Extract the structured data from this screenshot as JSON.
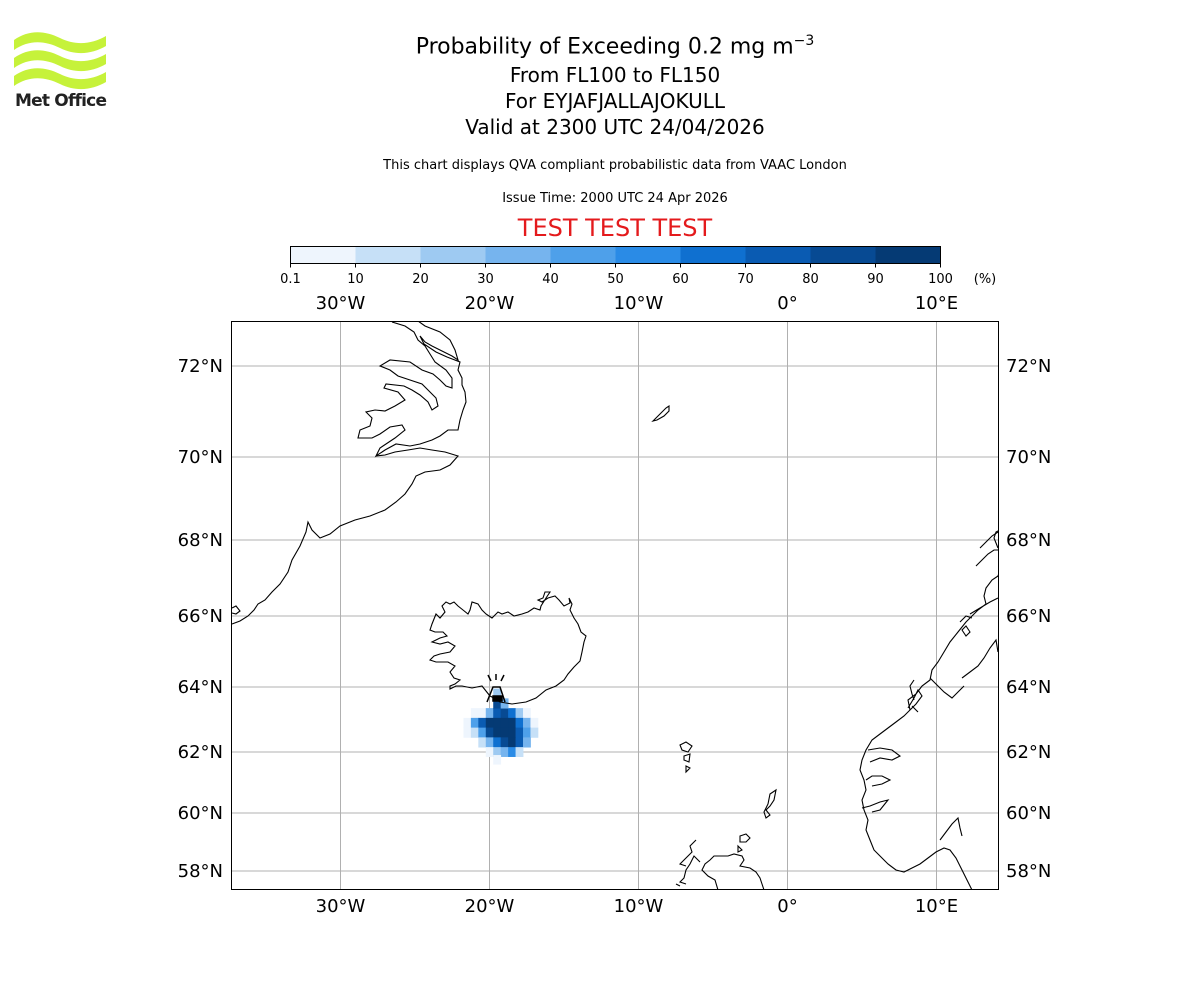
{
  "header": {
    "title_prefix": "Probability of Exceeding 0.2 mg m",
    "title_exponent": "−3",
    "level_range": "From FL100 to FL150",
    "volcano": "For EYJAFJALLAJOKULL",
    "valid_time": "Valid at 2300 UTC 24/04/2026",
    "description": "This chart displays QVA compliant probabilistic data from VAAC London",
    "issue_time": "Issue Time: 2000 UTC 24 Apr 2026",
    "test_banner": "TEST TEST TEST",
    "test_color": "#e41a1c"
  },
  "logo": {
    "text": "Met Office",
    "accent_color": "#c6f23a"
  },
  "colorbar": {
    "unit": "(%)",
    "ticks": [
      "0.1",
      "10",
      "20",
      "30",
      "40",
      "50",
      "60",
      "70",
      "80",
      "90",
      "100"
    ],
    "colors": [
      "#eef5fd",
      "#c6e0f7",
      "#9ecaf2",
      "#76b4ee",
      "#4ea0ea",
      "#2a8be6",
      "#0f70d0",
      "#0a5bb2",
      "#074a93",
      "#053a74",
      "#032a54"
    ]
  },
  "map": {
    "lon_labels": [
      "30°W",
      "20°W",
      "10°W",
      "0°",
      "10°E"
    ],
    "lat_labels": [
      "72°N",
      "70°N",
      "68°N",
      "66°N",
      "64°N",
      "62°N",
      "60°N",
      "58°N"
    ],
    "volcano_symbol": "volcano-icon",
    "ash_probability_cells": [
      [
        -21.0,
        63.2,
        0.1
      ],
      [
        -20.5,
        63.2,
        5
      ],
      [
        -20.0,
        63.2,
        30
      ],
      [
        -19.5,
        63.2,
        70
      ],
      [
        -19.0,
        63.2,
        85
      ],
      [
        -18.5,
        63.2,
        60
      ],
      [
        -18.0,
        63.2,
        20
      ],
      [
        -17.5,
        63.2,
        5
      ],
      [
        -21.5,
        62.9,
        5
      ],
      [
        -21.0,
        62.9,
        40
      ],
      [
        -20.5,
        62.9,
        70
      ],
      [
        -20.0,
        62.9,
        95
      ],
      [
        -19.5,
        62.9,
        100
      ],
      [
        -19.0,
        62.9,
        100
      ],
      [
        -18.5,
        62.9,
        90
      ],
      [
        -18.0,
        62.9,
        60
      ],
      [
        -17.5,
        62.9,
        30
      ],
      [
        -17.0,
        62.9,
        5
      ],
      [
        -21.5,
        62.6,
        0.1
      ],
      [
        -21.0,
        62.6,
        15
      ],
      [
        -20.5,
        62.6,
        40
      ],
      [
        -20.0,
        62.6,
        80
      ],
      [
        -19.5,
        62.6,
        95
      ],
      [
        -19.0,
        62.6,
        100
      ],
      [
        -18.5,
        62.6,
        95
      ],
      [
        -18.0,
        62.6,
        70
      ],
      [
        -17.5,
        62.6,
        40
      ],
      [
        -17.0,
        62.6,
        10
      ],
      [
        -20.5,
        62.3,
        10
      ],
      [
        -20.0,
        62.3,
        30
      ],
      [
        -19.5,
        62.3,
        60
      ],
      [
        -19.0,
        62.3,
        85
      ],
      [
        -18.5,
        62.3,
        90
      ],
      [
        -18.0,
        62.3,
        70
      ],
      [
        -17.5,
        62.3,
        30
      ],
      [
        -20.0,
        62.0,
        5
      ],
      [
        -19.5,
        62.0,
        20
      ],
      [
        -19.0,
        62.0,
        35
      ],
      [
        -18.5,
        62.0,
        50
      ],
      [
        -18.0,
        62.0,
        15
      ],
      [
        -19.5,
        61.75,
        0.1
      ],
      [
        -19.5,
        63.5,
        80
      ],
      [
        -19.0,
        63.5,
        30
      ],
      [
        -19.5,
        63.8,
        20
      ]
    ]
  }
}
